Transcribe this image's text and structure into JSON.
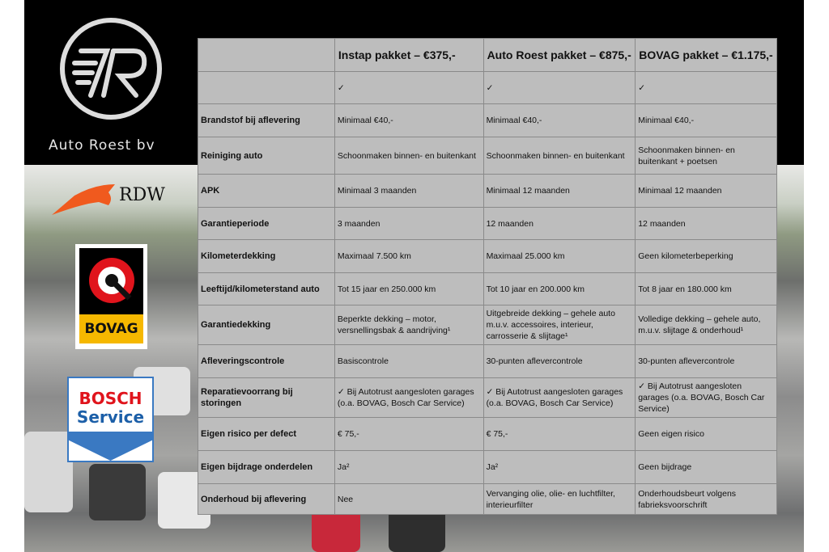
{
  "brand": {
    "name": "Auto Roest bv",
    "rdw": "RDW",
    "bovag": "BOVAG",
    "bosch_line1": "BOSCH",
    "bosch_line2": "Service"
  },
  "table": {
    "headers": [
      "",
      "Instap pakket – €375,-",
      "Auto Roest pakket – €875,-",
      "BOVAG pakket – €1.175,-"
    ],
    "rows": [
      {
        "label": "",
        "values": [
          "✓",
          "✓",
          "✓"
        ]
      },
      {
        "label": "Brandstof bij aflevering",
        "values": [
          "Minimaal €40,-",
          "Minimaal €40,-",
          "Minimaal €40,-"
        ]
      },
      {
        "label": "Reiniging auto",
        "values": [
          "Schoonmaken binnen- en buitenkant",
          "Schoonmaken binnen- en buitenkant",
          "Schoonmaken binnen- en buitenkant + poetsen"
        ]
      },
      {
        "label": "APK",
        "values": [
          "Minimaal 3 maanden",
          "Minimaal 12 maanden",
          "Minimaal 12 maanden"
        ]
      },
      {
        "label": "Garantieperiode",
        "values": [
          "3 maanden",
          "12 maanden",
          "12 maanden"
        ]
      },
      {
        "label": "Kilometerdekking",
        "values": [
          "Maximaal 7.500 km",
          "Maximaal 25.000 km",
          "Geen kilometerbeperking"
        ]
      },
      {
        "label": "Leeftijd/kilometerstand auto",
        "values": [
          "Tot 15 jaar en 250.000 km",
          "Tot 10 jaar en 200.000 km",
          "Tot 8 jaar en 180.000 km"
        ]
      },
      {
        "label": "Garantiedekking",
        "values": [
          "Beperkte dekking – motor, versnellingsbak & aandrijving¹",
          "Uitgebreide dekking – gehele auto m.u.v. accessoires, interieur, carrosserie & slijtage¹",
          "Volledige dekking – gehele auto, m.u.v. slijtage & onderhoud¹"
        ]
      },
      {
        "label": "Afleveringscontrole",
        "values": [
          "Basiscontrole",
          "30-punten aflevercontrole",
          "30-punten aflevercontrole"
        ]
      },
      {
        "label": "Reparatievoorrang bij storingen",
        "values": [
          "✓ Bij Autotrust aangesloten garages (o.a. BOVAG, Bosch Car Service)",
          "✓ Bij Autotrust aangesloten garages (o.a. BOVAG, Bosch Car Service)",
          "✓ Bij Autotrust aangesloten garages (o.a. BOVAG, Bosch Car Service)"
        ]
      },
      {
        "label": "Eigen risico per defect",
        "values": [
          "€ 75,-",
          "€ 75,-",
          "Geen eigen risico"
        ]
      },
      {
        "label": "Eigen bijdrage onderdelen",
        "values": [
          "Ja²",
          "Ja²",
          "Geen bijdrage"
        ]
      },
      {
        "label": "Onderhoud bij aflevering",
        "values": [
          "Nee",
          "Vervanging olie, olie- en luchtfilter, interieurfilter",
          "Onderhoudsbeurt volgens fabrieksvoorschrift"
        ]
      }
    ]
  }
}
